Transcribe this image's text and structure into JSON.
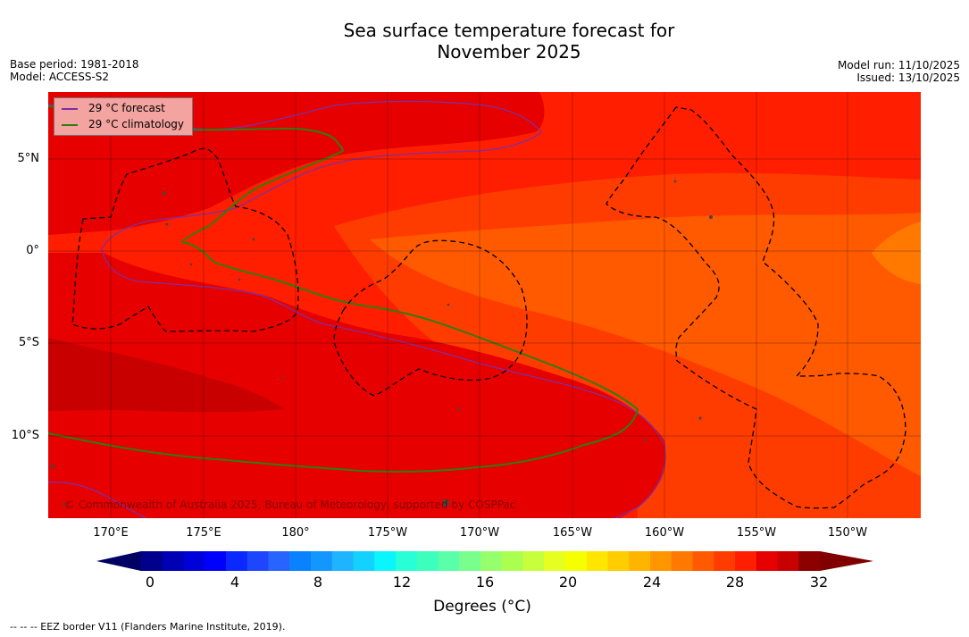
{
  "title_line1": "Sea surface temperature forecast for",
  "title_line2": "November 2025",
  "meta_left": [
    "Base period: 1981-2018",
    "Model: ACCESS-S2"
  ],
  "meta_right": [
    "Model run: 11/10/2025",
    "Issued: 13/10/2025"
  ],
  "lat_labels": [
    "5°N",
    "0°",
    "5°S",
    "10°S"
  ],
  "lon_labels": [
    "170°E",
    "175°E",
    "180°",
    "175°W",
    "170°W",
    "165°W",
    "160°W",
    "155°W",
    "150°W"
  ],
  "legend": {
    "forecast": "29 °C  forecast",
    "climatology": "29 °C  climatology",
    "forecast_color": "#7f2fa0",
    "climatology_color": "#2e7d10"
  },
  "credit": "© Commonwealth of Australia 2025, Bureau of Meteorology, supported by COSPPac",
  "colorbar": {
    "ticks": [
      "0",
      "4",
      "8",
      "12",
      "16",
      "20",
      "24",
      "28",
      "32"
    ],
    "label": "Degrees (°C)",
    "colors": [
      "#00008c",
      "#0000b4",
      "#0000d8",
      "#0000ff",
      "#0a28ff",
      "#1e46ff",
      "#2864ff",
      "#0a82ff",
      "#1496ff",
      "#1eb4ff",
      "#14d2ff",
      "#0af5ff",
      "#28ffd7",
      "#3cffbe",
      "#5affaa",
      "#78ff8c",
      "#96ff6e",
      "#aaff50",
      "#c8ff3c",
      "#e6ff1e",
      "#f5ff00",
      "#ffe600",
      "#ffcd00",
      "#ffb400",
      "#ff9600",
      "#ff7800",
      "#ff5a00",
      "#ff3c00",
      "#ff1e00",
      "#e60000",
      "#c80000",
      "#8c0000"
    ],
    "under_color": "#000064",
    "over_color": "#800000"
  },
  "eez_note": "--  --  -- EEZ border V11 (Flanders Marine Institute, 2019)."
}
